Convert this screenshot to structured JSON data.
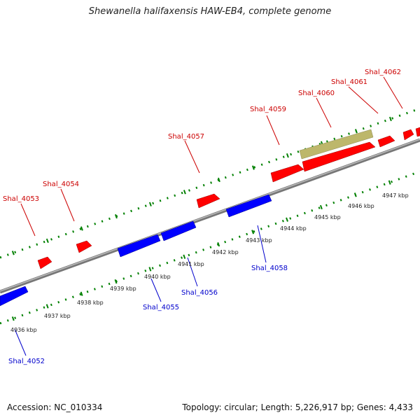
{
  "title": "Shewanella halifaxensis HAW-EB4, complete genome",
  "footer": {
    "accession": "Accession: NC_010334",
    "summary": "Topology: circular; Length: 5,226,917 bp; Genes: 4,433"
  },
  "colors": {
    "forward_gene": "#ff0000",
    "reverse_gene": "#0000ff",
    "other_feature": "#bdb76b",
    "backbone": "#888888",
    "ticks": "#008000",
    "forward_label": "#cc0000",
    "reverse_label": "#0000cc"
  },
  "forward_genes": [
    {
      "name": "Shal_4053",
      "label_text": "Shal_4053"
    },
    {
      "name": "Shal_4054",
      "label_text": "Shal_4054"
    },
    {
      "name": "Shal_4057",
      "label_text": "Shal_4057"
    },
    {
      "name": "Shal_4059",
      "label_text": "Shal_4059"
    },
    {
      "name": "Shal_4060",
      "label_text": "Shal_4060"
    },
    {
      "name": "Shal_4061",
      "label_text": "Shal_4061"
    },
    {
      "name": "Shal_4062",
      "label_text": "Shal_4062"
    }
  ],
  "reverse_genes": [
    {
      "name": "Shal_4052",
      "label_text": "Shal_4052"
    },
    {
      "name": "Shal_4055",
      "label_text": "Shal_4055"
    },
    {
      "name": "Shal_4056",
      "label_text": "Shal_4056"
    },
    {
      "name": "Shal_4058",
      "label_text": "Shal_4058"
    }
  ],
  "scale_ticks": [
    "4936 kbp",
    "4937 kbp",
    "4938 kbp",
    "4939 kbp",
    "4940 kbp",
    "4941 kbp",
    "4942 kbp",
    "4943 kbp",
    "4944 kbp",
    "4945 kbp",
    "4946 kbp",
    "4947 kbp"
  ]
}
